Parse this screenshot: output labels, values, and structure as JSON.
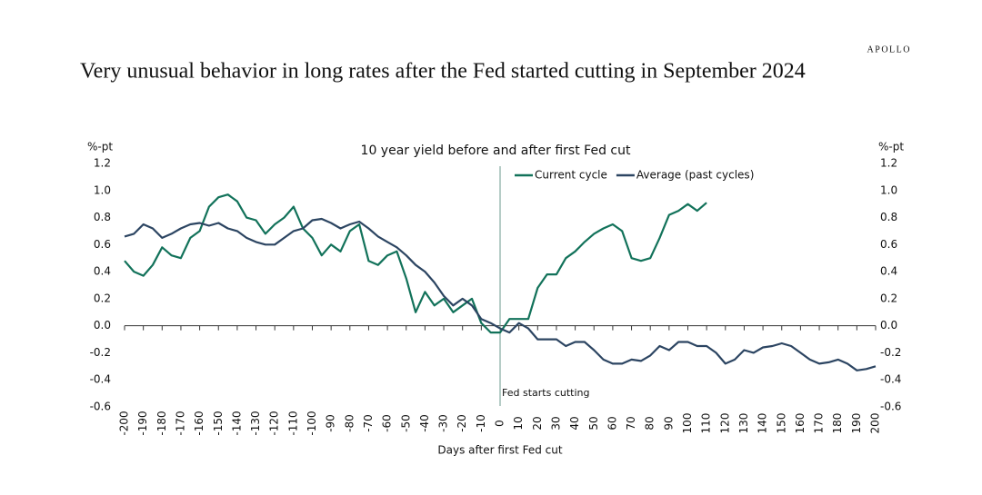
{
  "brand": "APOLLO",
  "chart_data": {
    "type": "line",
    "title": "Very unusual behavior in long rates after the Fed started cutting in September 2024",
    "subtitle": "10 year yield before and after first Fed cut",
    "ylabel": "%-pt",
    "y2label": "%-pt",
    "xlabel": "Days after first Fed cut",
    "legend": "top",
    "annotations": [
      {
        "text": "Fed starts cutting",
        "x": 0
      }
    ],
    "x": [
      -200,
      -195,
      -190,
      -185,
      -180,
      -175,
      -170,
      -165,
      -160,
      -155,
      -150,
      -145,
      -140,
      -135,
      -130,
      -125,
      -120,
      -115,
      -110,
      -105,
      -100,
      -95,
      -90,
      -85,
      -80,
      -75,
      -70,
      -65,
      -60,
      -55,
      -50,
      -45,
      -40,
      -35,
      -30,
      -25,
      -20,
      -15,
      -10,
      -5,
      0,
      5,
      10,
      15,
      20,
      25,
      30,
      35,
      40,
      45,
      50,
      55,
      60,
      65,
      70,
      75,
      80,
      85,
      90,
      95,
      100,
      105,
      110,
      115,
      120,
      125,
      130,
      135,
      140,
      145,
      150,
      155,
      160,
      165,
      170,
      175,
      180,
      185,
      190,
      195,
      200
    ],
    "series": [
      {
        "name": "Current cycle",
        "color": "#12725a",
        "values": [
          0.48,
          0.4,
          0.37,
          0.45,
          0.58,
          0.52,
          0.5,
          0.65,
          0.7,
          0.88,
          0.95,
          0.97,
          0.92,
          0.8,
          0.78,
          0.68,
          0.75,
          0.8,
          0.88,
          0.72,
          0.65,
          0.52,
          0.6,
          0.55,
          0.7,
          0.75,
          0.48,
          0.45,
          0.52,
          0.55,
          0.35,
          0.1,
          0.25,
          0.15,
          0.2,
          0.1,
          0.15,
          0.2,
          0.02,
          -0.05,
          -0.05,
          0.05,
          0.05,
          0.05,
          0.28,
          0.38,
          0.38,
          0.5,
          0.55,
          0.62,
          0.68,
          0.72,
          0.75,
          0.7,
          0.5,
          0.48,
          0.5,
          0.65,
          0.82,
          0.85,
          0.9,
          0.85,
          0.91,
          null,
          null,
          null,
          null,
          null,
          null,
          null,
          null,
          null,
          null,
          null,
          null,
          null,
          null,
          null,
          null,
          null,
          null
        ]
      },
      {
        "name": "Average (past cycles)",
        "color": "#2c4562",
        "values": [
          0.66,
          0.68,
          0.75,
          0.72,
          0.65,
          0.68,
          0.72,
          0.75,
          0.76,
          0.74,
          0.76,
          0.72,
          0.7,
          0.65,
          0.62,
          0.6,
          0.6,
          0.65,
          0.7,
          0.72,
          0.78,
          0.79,
          0.76,
          0.72,
          0.75,
          0.77,
          0.72,
          0.66,
          0.62,
          0.58,
          0.52,
          0.45,
          0.4,
          0.32,
          0.22,
          0.15,
          0.2,
          0.15,
          0.05,
          0.02,
          -0.02,
          -0.05,
          0.02,
          -0.02,
          -0.1,
          -0.1,
          -0.1,
          -0.15,
          -0.12,
          -0.12,
          -0.18,
          -0.25,
          -0.28,
          -0.28,
          -0.25,
          -0.26,
          -0.22,
          -0.15,
          -0.18,
          -0.12,
          -0.12,
          -0.15,
          -0.15,
          -0.2,
          -0.28,
          -0.25,
          -0.18,
          -0.2,
          -0.16,
          -0.15,
          -0.13,
          -0.15,
          -0.2,
          -0.25,
          -0.28,
          -0.27,
          -0.25,
          -0.28,
          -0.33,
          -0.32,
          -0.3
        ]
      }
    ],
    "xlim": [
      -200,
      200
    ],
    "xticks": [
      -200,
      -190,
      -180,
      -170,
      -160,
      -150,
      -140,
      -130,
      -120,
      -110,
      -100,
      -90,
      -80,
      -70,
      -60,
      -50,
      -40,
      -30,
      -20,
      -10,
      0,
      10,
      20,
      30,
      40,
      50,
      60,
      70,
      80,
      90,
      100,
      110,
      120,
      130,
      140,
      150,
      160,
      170,
      180,
      190,
      200
    ],
    "ylim": [
      -0.6,
      1.2
    ],
    "yticks": [
      -0.6,
      -0.4,
      -0.2,
      {
        "value": 0,
        "label": "0.0"
      },
      0.2,
      0.4,
      0.6,
      0.8,
      {
        "value": 1,
        "label": "1.0"
      },
      1.2
    ],
    "y2lim": [
      -0.6,
      1.2
    ],
    "y2ticks": [
      -0.6,
      -0.4,
      -0.2,
      {
        "value": 0,
        "label": "0.0"
      },
      0.2,
      0.4,
      0.6,
      0.8,
      {
        "value": 1,
        "label": "1.0"
      },
      1.2
    ]
  }
}
